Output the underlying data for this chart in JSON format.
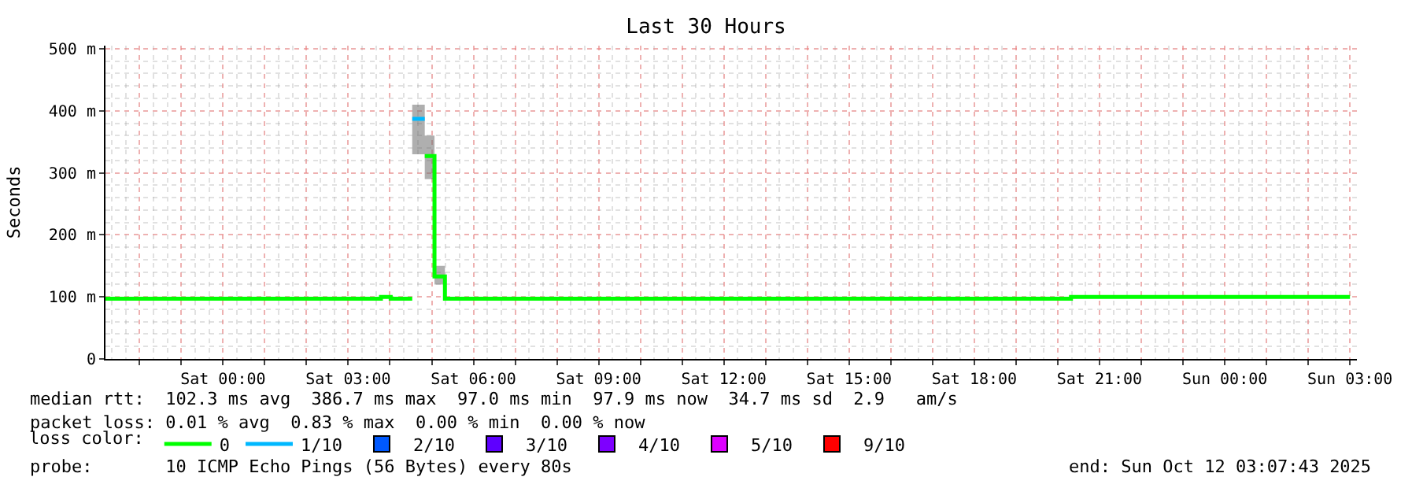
{
  "chart_data": {
    "type": "step",
    "title": "Last 30 Hours",
    "ylabel": "Seconds",
    "legend_title": "loss color:",
    "legend": "bottom",
    "grid": true,
    "xlim": [
      "2025-10-10T21:11",
      "2025-10-12T03:10"
    ],
    "xticks": [
      {
        "value": "2025-10-10T22:00",
        "label": null
      },
      {
        "value": "2025-10-10T23:00",
        "label": null
      },
      {
        "value": "2025-10-11T00:00",
        "label": "Sat 00:00"
      },
      {
        "value": "2025-10-11T01:00",
        "label": null
      },
      {
        "value": "2025-10-11T02:00",
        "label": null
      },
      {
        "value": "2025-10-11T03:00",
        "label": "Sat 03:00"
      },
      {
        "value": "2025-10-11T04:00",
        "label": null
      },
      {
        "value": "2025-10-11T05:00",
        "label": null
      },
      {
        "value": "2025-10-11T06:00",
        "label": "Sat 06:00"
      },
      {
        "value": "2025-10-11T07:00",
        "label": null
      },
      {
        "value": "2025-10-11T08:00",
        "label": null
      },
      {
        "value": "2025-10-11T09:00",
        "label": "Sat 09:00"
      },
      {
        "value": "2025-10-11T10:00",
        "label": null
      },
      {
        "value": "2025-10-11T11:00",
        "label": null
      },
      {
        "value": "2025-10-11T12:00",
        "label": "Sat 12:00"
      },
      {
        "value": "2025-10-11T13:00",
        "label": null
      },
      {
        "value": "2025-10-11T14:00",
        "label": null
      },
      {
        "value": "2025-10-11T15:00",
        "label": "Sat 15:00"
      },
      {
        "value": "2025-10-11T16:00",
        "label": null
      },
      {
        "value": "2025-10-11T17:00",
        "label": null
      },
      {
        "value": "2025-10-11T18:00",
        "label": "Sat 18:00"
      },
      {
        "value": "2025-10-11T19:00",
        "label": null
      },
      {
        "value": "2025-10-11T20:00",
        "label": null
      },
      {
        "value": "2025-10-11T21:00",
        "label": "Sat 21:00"
      },
      {
        "value": "2025-10-11T22:00",
        "label": null
      },
      {
        "value": "2025-10-11T23:00",
        "label": null
      },
      {
        "value": "2025-10-12T00:00",
        "label": "Sun 00:00"
      },
      {
        "value": "2025-10-12T01:00",
        "label": null
      },
      {
        "value": "2025-10-12T02:00",
        "label": null
      },
      {
        "value": "2025-10-12T03:00",
        "label": "Sun 03:00"
      }
    ],
    "ylim": [
      0,
      505
    ],
    "yticks": [
      {
        "value": 0,
        "label": "0"
      },
      {
        "value": 100,
        "label": "100 m"
      },
      {
        "value": 200,
        "label": "200 m"
      },
      {
        "value": 300,
        "label": "300 m"
      },
      {
        "value": 400,
        "label": "400 m"
      },
      {
        "value": 500,
        "label": "500 m"
      }
    ],
    "series": [
      {
        "name": "0",
        "color": "#00ff00",
        "x": [
          "2025-10-10T21:11",
          "2025-10-11T03:47",
          "2025-10-11T04:01",
          "2025-10-11T04:32",
          "2025-10-11T04:50",
          "2025-10-11T05:04",
          "2025-10-11T05:19",
          "2025-10-11T20:19",
          "2025-10-12T03:00"
        ],
        "values": [
          97,
          100,
          97,
          null,
          327,
          133,
          97,
          100,
          100
        ],
        "lower": [
          null,
          null,
          null,
          330,
          290,
          120,
          120,
          null,
          null
        ],
        "upper": [
          null,
          null,
          null,
          410,
          360,
          150,
          150,
          null,
          null
        ]
      },
      {
        "name": "1/10",
        "color": "#00b8ff",
        "x": [
          "2025-10-11T04:32",
          "2025-10-11T04:50"
        ],
        "values": [
          387,
          387
        ]
      },
      {
        "type": "line",
        "name": "2/10",
        "color": "#0059ff"
      },
      {
        "type": "line",
        "name": "3/10",
        "color": "#5e00ff"
      },
      {
        "type": "line",
        "name": "4/10",
        "color": "#7e00ff"
      },
      {
        "type": "line",
        "name": "5/10",
        "color": "#dd00ff"
      },
      {
        "type": "line",
        "name": "9/10",
        "color": "#ff0000"
      }
    ],
    "annotations": [
      "median rtt:  102.3 ms avg  386.7 ms max  97.0 ms min  97.9 ms now  34.7 ms sd  2.9   am/s",
      "packet loss: 0.01 % avg  0.83 % max  0.00 % min  0.00 % now",
      "probe:       10 ICMP Echo Pings (56 Bytes) every 80s",
      "end: Sun Oct 12 03:07:43 2025"
    ]
  }
}
